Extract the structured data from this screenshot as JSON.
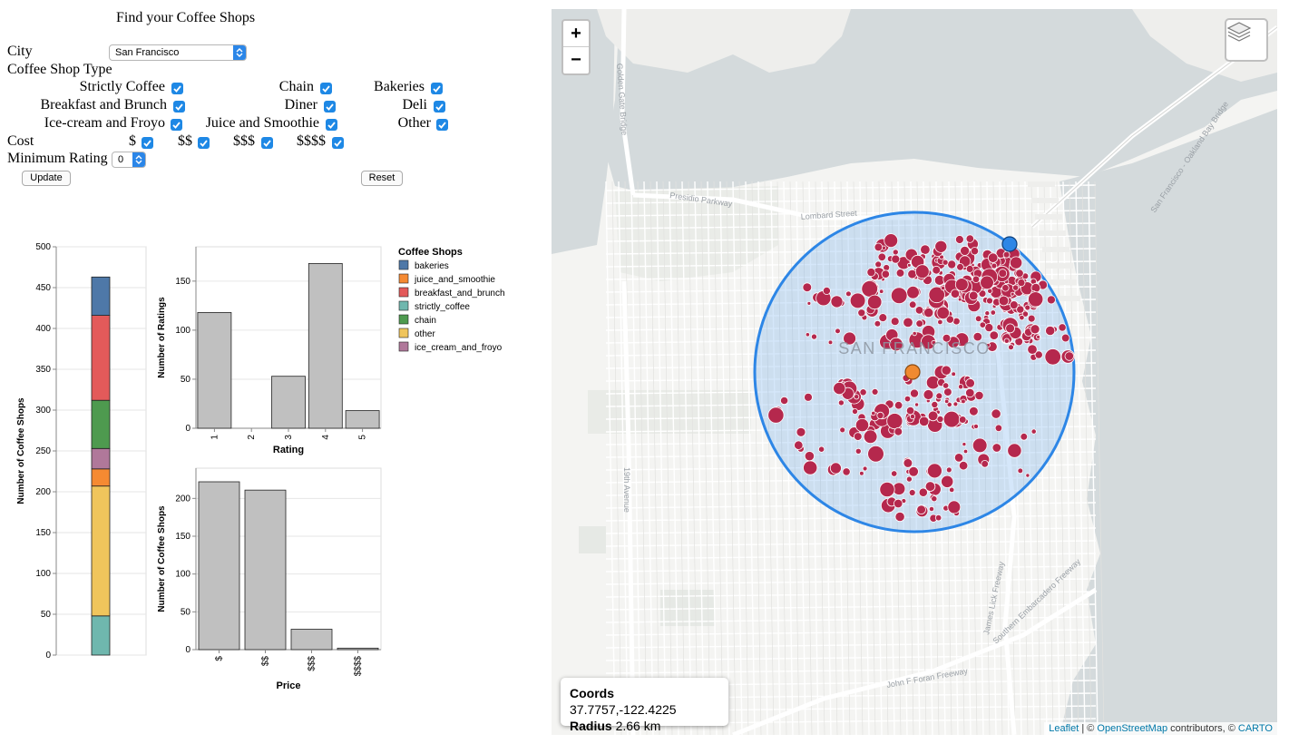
{
  "panel": {
    "title": "Find your Coffee Shops",
    "city_label": "City",
    "city_value": "San Francisco",
    "type_label": "Coffee Shop Type",
    "types": [
      {
        "label": "Strictly Coffee",
        "checked": true
      },
      {
        "label": "Chain",
        "checked": true
      },
      {
        "label": "Bakeries",
        "checked": true
      },
      {
        "label": "Breakfast and Brunch",
        "checked": true
      },
      {
        "label": "Diner",
        "checked": true
      },
      {
        "label": "Deli",
        "checked": true
      },
      {
        "label": "Ice-cream and Froyo",
        "checked": true
      },
      {
        "label": "Juice and Smoothie",
        "checked": true
      },
      {
        "label": "Other",
        "checked": true
      }
    ],
    "cost_label": "Cost",
    "costs": [
      {
        "label": "$",
        "checked": true
      },
      {
        "label": "$$",
        "checked": true
      },
      {
        "label": "$$$",
        "checked": true
      },
      {
        "label": "$$$$",
        "checked": true
      }
    ],
    "min_rating_label": "Minimum Rating",
    "min_rating_value": "0",
    "update_label": "Update",
    "reset_label": "Reset"
  },
  "chart_data": [
    {
      "type": "bar",
      "subtype": "stacked",
      "ylabel": "Number of Coffee Shops",
      "ylim": [
        0,
        500
      ],
      "yticks": [
        0,
        50,
        100,
        150,
        200,
        250,
        300,
        350,
        400,
        450,
        500
      ],
      "grid": true,
      "series": [
        {
          "name": "strictly_coffee",
          "value": 48,
          "color": "#6fb7ae"
        },
        {
          "name": "other",
          "value": 159,
          "color": "#f0c55c"
        },
        {
          "name": "juice_and_smoothie",
          "value": 21,
          "color": "#f58a32"
        },
        {
          "name": "ice_cream_and_froyo",
          "value": 25,
          "color": "#b0789a"
        },
        {
          "name": "chain",
          "value": 59,
          "color": "#4e9a4f"
        },
        {
          "name": "breakfast_and_brunch",
          "value": 104,
          "color": "#e35a5a"
        },
        {
          "name": "bakeries",
          "value": 47,
          "color": "#4e78a8"
        }
      ]
    },
    {
      "type": "bar",
      "categories": [
        "1",
        "2",
        "3",
        "4",
        "5"
      ],
      "values": [
        118,
        0,
        53,
        168,
        18
      ],
      "xlabel": "Rating",
      "ylabel": "Number of Ratings",
      "ylim": [
        0,
        185
      ],
      "yticks": [
        0,
        50,
        100,
        150
      ],
      "grid": true,
      "color": "#c0c0c0"
    },
    {
      "type": "bar",
      "categories": [
        "$",
        "$$",
        "$$$",
        "$$$$"
      ],
      "values": [
        222,
        211,
        27,
        2
      ],
      "xlabel": "Price",
      "ylabel": "Number of Coffee Shops",
      "ylim": [
        0,
        240
      ],
      "yticks": [
        0,
        50,
        100,
        150,
        200
      ],
      "grid": true,
      "color": "#c0c0c0"
    }
  ],
  "legend": {
    "title": "Coffee Shops",
    "items": [
      {
        "label": "bakeries",
        "color": "#4e78a8"
      },
      {
        "label": "juice_and_smoothie",
        "color": "#f58a32"
      },
      {
        "label": "breakfast_and_brunch",
        "color": "#e35a5a"
      },
      {
        "label": "strictly_coffee",
        "color": "#6fb7ae"
      },
      {
        "label": "chain",
        "color": "#4e9a4f"
      },
      {
        "label": "other",
        "color": "#f0c55c"
      },
      {
        "label": "ice_cream_and_froyo",
        "color": "#b0789a"
      }
    ]
  },
  "map": {
    "city_label": "SAN FRANCISCO",
    "street_labels": [
      "Presidio Parkway",
      "Lombard Street",
      "Golden Gate Bridge",
      "San Francisco - Oakland Bay Bridge",
      "19th Avenue",
      "John F Foran Freeway",
      "James Lick Freeway",
      "Southern Embarcadero Freeway"
    ],
    "zoom_in": "+",
    "zoom_out": "−",
    "coords_label": "Coords",
    "coords_value": "37.7757,-122.4225",
    "radius_label": "Radius",
    "radius_value": "2.66 km",
    "attribution_leaflet": "Leaflet",
    "attribution_sep": " | © ",
    "attribution_osm": "OpenStreetMap",
    "attribution_mid": " contributors, © ",
    "attribution_carto": "CARTO",
    "circle_color": "#2d86e6",
    "marker_color": "#b5284d"
  }
}
